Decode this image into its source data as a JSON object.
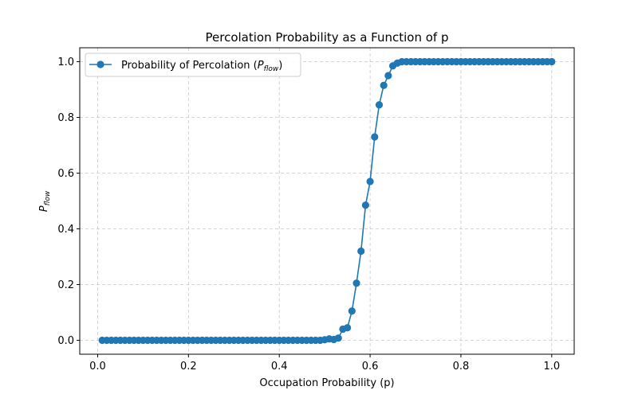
{
  "chart_data": {
    "type": "line",
    "title": "Percolation Probability as a Function of p",
    "xlabel": "Occupation Probability (p)",
    "ylabel": {
      "base": "P",
      "sub": "flow"
    },
    "xlim": [
      -0.0395,
      1.0495
    ],
    "ylim": [
      -0.05,
      1.05
    ],
    "xticks": [
      0.0,
      0.2,
      0.4,
      0.6,
      0.8,
      1.0
    ],
    "xtick_labels": [
      "0.0",
      "0.2",
      "0.4",
      "0.6",
      "0.8",
      "1.0"
    ],
    "yticks": [
      0.0,
      0.2,
      0.4,
      0.6,
      0.8,
      1.0
    ],
    "ytick_labels": [
      "0.0",
      "0.2",
      "0.4",
      "0.6",
      "0.8",
      "1.0"
    ],
    "grid": true,
    "legend_position": "upper-left",
    "series": [
      {
        "name": {
          "base": "Probability of Percolation (",
          "italic": "P",
          "sub": "flow",
          "end": ")"
        },
        "color": "#1f77b4",
        "marker": "circle",
        "x": [
          0.01,
          0.02,
          0.03,
          0.04,
          0.05,
          0.06,
          0.07,
          0.08,
          0.09,
          0.1,
          0.11,
          0.12,
          0.13,
          0.14,
          0.15,
          0.16,
          0.17,
          0.18,
          0.19,
          0.2,
          0.21,
          0.22,
          0.23,
          0.24,
          0.25,
          0.26,
          0.27,
          0.28,
          0.29,
          0.3,
          0.31,
          0.32,
          0.33,
          0.34,
          0.35,
          0.36,
          0.37,
          0.38,
          0.39,
          0.4,
          0.41,
          0.42,
          0.43,
          0.44,
          0.45,
          0.46,
          0.47,
          0.48,
          0.49,
          0.5,
          0.51,
          0.52,
          0.53,
          0.54,
          0.55,
          0.56,
          0.57,
          0.58,
          0.59,
          0.6,
          0.61,
          0.62,
          0.63,
          0.64,
          0.65,
          0.66,
          0.67,
          0.68,
          0.69,
          0.7,
          0.71,
          0.72,
          0.73,
          0.74,
          0.75,
          0.76,
          0.77,
          0.78,
          0.79,
          0.8,
          0.81,
          0.82,
          0.83,
          0.84,
          0.85,
          0.86,
          0.87,
          0.88,
          0.89,
          0.9,
          0.91,
          0.92,
          0.93,
          0.94,
          0.95,
          0.96,
          0.97,
          0.98,
          0.99,
          1.0
        ],
        "y": [
          0,
          0,
          0,
          0,
          0,
          0,
          0,
          0,
          0,
          0,
          0,
          0,
          0,
          0,
          0,
          0,
          0,
          0,
          0,
          0,
          0,
          0,
          0,
          0,
          0,
          0,
          0,
          0,
          0,
          0,
          0,
          0,
          0,
          0,
          0,
          0,
          0,
          0,
          0,
          0,
          0,
          0,
          0,
          0,
          0,
          0,
          0,
          0,
          0,
          0.002,
          0.005,
          0.003,
          0.008,
          0.04,
          0.045,
          0.105,
          0.205,
          0.32,
          0.485,
          0.57,
          0.73,
          0.845,
          0.915,
          0.95,
          0.985,
          0.995,
          1,
          1,
          1,
          1,
          1,
          1,
          1,
          1,
          1,
          1,
          1,
          1,
          1,
          1,
          1,
          1,
          1,
          1,
          1,
          1,
          1,
          1,
          1,
          1,
          1,
          1,
          1,
          1,
          1,
          1,
          1,
          1,
          1,
          1
        ]
      }
    ]
  }
}
